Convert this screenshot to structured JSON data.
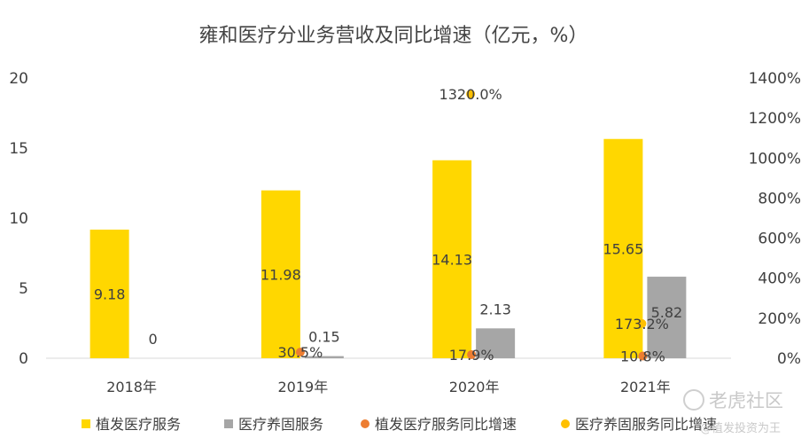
{
  "chart_data": {
    "type": "bar",
    "title": "雍和医疗分业务营收及同比增速（亿元，%）",
    "categories": [
      "2018年",
      "2019年",
      "2020年",
      "2021年"
    ],
    "ylim": [
      0,
      20
    ],
    "y_ticks": [
      "0",
      "5",
      "10",
      "15",
      "20"
    ],
    "y2lim": [
      0,
      1400
    ],
    "y2_ticks": [
      "0%",
      "200%",
      "400%",
      "600%",
      "800%",
      "1000%",
      "1200%",
      "1400%"
    ],
    "series": [
      {
        "name": "植发医疗服务",
        "kind": "bar",
        "axis": "left",
        "color": "#FFD700",
        "values": [
          9.18,
          11.98,
          14.13,
          15.65
        ],
        "labels": [
          "9.18",
          "11.98",
          "14.13",
          "15.65"
        ]
      },
      {
        "name": "医疗养固服务",
        "kind": "bar",
        "axis": "left",
        "color": "#A6A6A6",
        "values": [
          0,
          0.15,
          2.13,
          5.82
        ],
        "labels": [
          "0",
          "0.15",
          "2.13",
          "5.82"
        ]
      },
      {
        "name": "植发医疗服务同比增速",
        "kind": "scatter",
        "axis": "right",
        "color": "#ED7D31",
        "values": [
          null,
          30.5,
          17.9,
          10.8
        ],
        "labels": [
          null,
          "30.5%",
          "17.9%",
          "10.8%"
        ]
      },
      {
        "name": "医疗养固服务同比增速",
        "kind": "scatter",
        "axis": "right",
        "color": "#FFC000",
        "values": [
          null,
          null,
          1320.0,
          173.2
        ],
        "labels": [
          null,
          null,
          "1320.0%",
          "173.2%"
        ]
      }
    ]
  },
  "watermark": {
    "brand": "老虎社区",
    "author": "@植发投资为王"
  }
}
